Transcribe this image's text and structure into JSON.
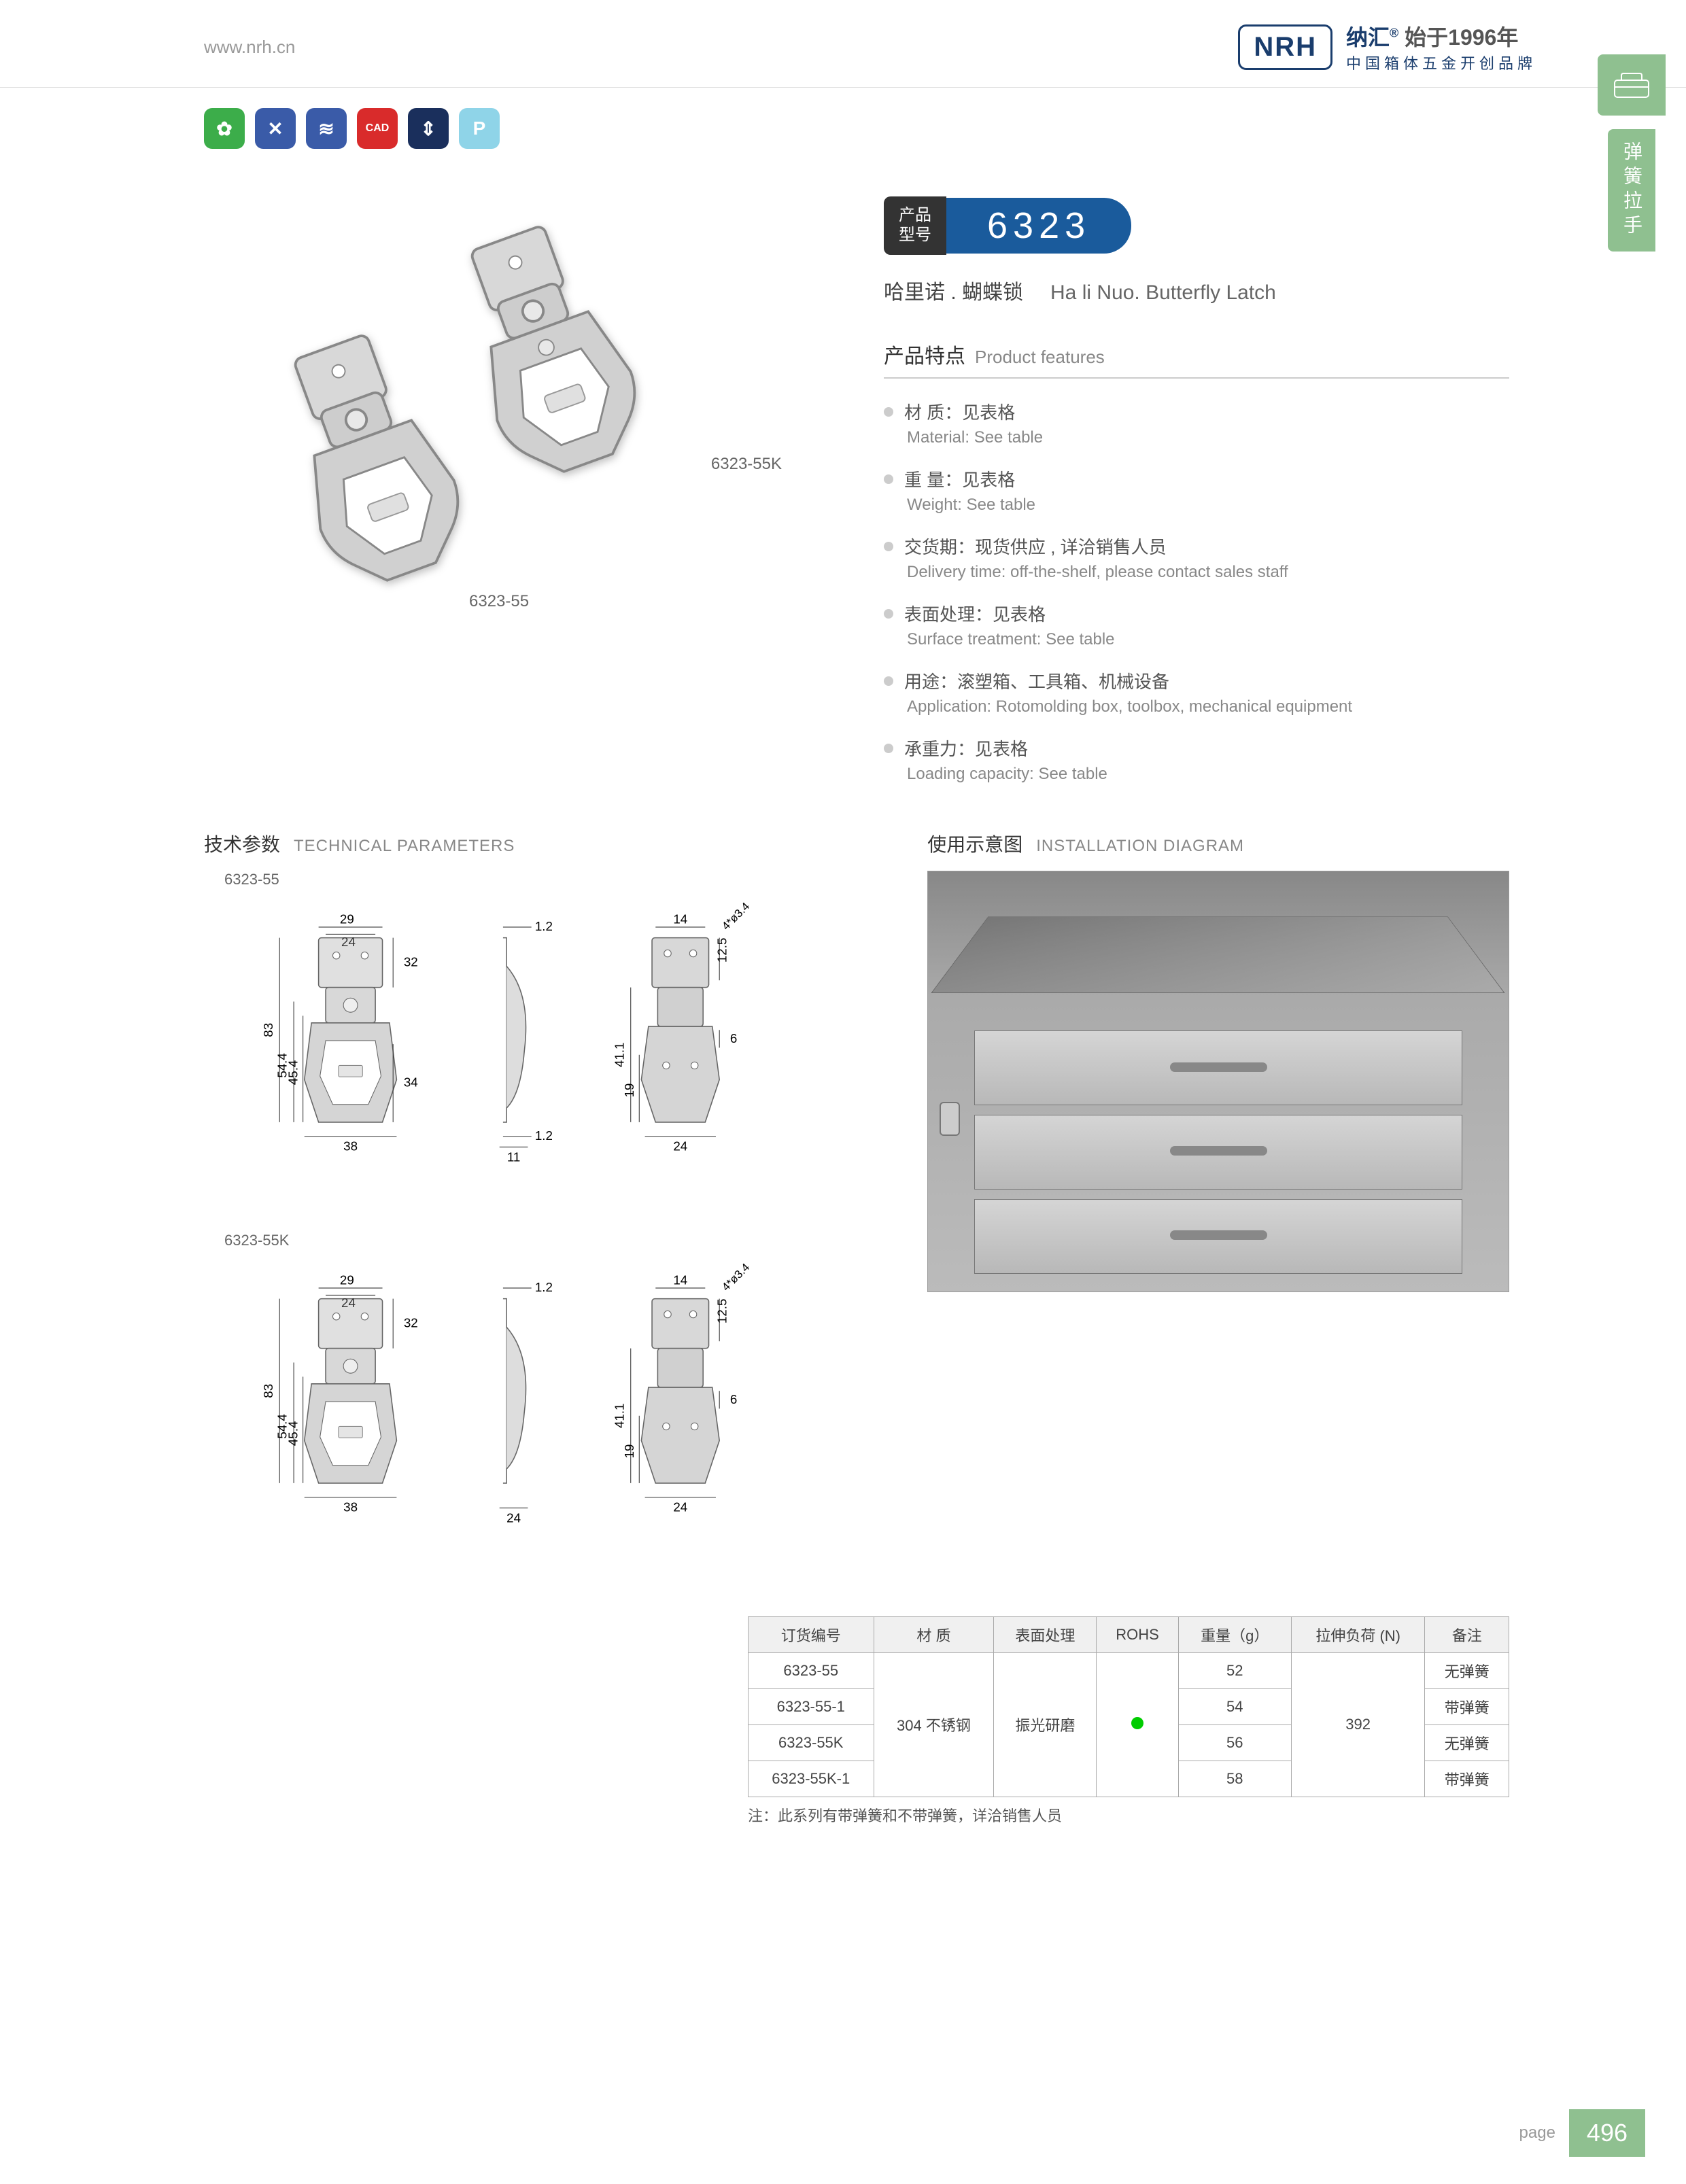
{
  "header": {
    "url": "www.nrh.cn",
    "logo": "NRH",
    "brand_cn": "纳汇",
    "brand_year": "始于1996年",
    "brand_sub": "中国箱体五金开创品牌"
  },
  "side": {
    "tab_label": "弹簧拉手"
  },
  "icons": [
    {
      "bg": "#3cad4a",
      "glyph": "✿"
    },
    {
      "bg": "#3a5ba8",
      "glyph": "✕"
    },
    {
      "bg": "#3a5ba8",
      "glyph": "≋"
    },
    {
      "bg": "#d92b2b",
      "glyph": "CAD"
    },
    {
      "bg": "#1a2f5c",
      "glyph": "⇕"
    },
    {
      "bg": "#8fd4e8",
      "glyph": "P"
    }
  ],
  "model": {
    "tag_l1": "产品",
    "tag_l2": "型号",
    "number": "6323",
    "name_cn": "哈里诺 . 蝴蝶锁",
    "name_en": "Ha li Nuo. Butterfly Latch"
  },
  "img_labels": {
    "a": "6323-55K",
    "b": "6323-55"
  },
  "features": {
    "title_cn": "产品特点",
    "title_en": "Product features",
    "items": [
      {
        "cn": "材 质：见表格",
        "en": "Material: See table"
      },
      {
        "cn": "重 量：见表格",
        "en": "Weight: See table"
      },
      {
        "cn": "交货期：现货供应 , 详洽销售人员",
        "en": "Delivery time: off-the-shelf, please contact sales staff"
      },
      {
        "cn": "表面处理：见表格",
        "en": "Surface treatment:  See table"
      },
      {
        "cn": "用途：滚塑箱、工具箱、机械设备",
        "en": "Application: Rotomolding box, toolbox, mechanical equipment"
      },
      {
        "cn": "承重力：见表格",
        "en": "Loading capacity: See table"
      }
    ]
  },
  "tech": {
    "title_cn": "技术参数",
    "title_en": "TECHNICAL PARAMETERS",
    "diagrams": [
      {
        "label": "6323-55",
        "dims": {
          "w1": "29",
          "w2": "24",
          "h1": "83",
          "h2": "54.4",
          "h3": "45.4",
          "h4": "32",
          "h5": "34",
          "w3": "38",
          "t1": "1.2",
          "t2": "1.2",
          "s1": "11",
          "v1": "41.1",
          "v2": "19",
          "v3": "12.5",
          "v4": "6",
          "vw1": "14",
          "vw2": "24",
          "hole": "4*ø3.4"
        }
      },
      {
        "label": "6323-55K",
        "dims": {
          "w1": "29",
          "w2": "24",
          "h1": "83",
          "h2": "54.4",
          "h3": "45.4",
          "h4": "32",
          "w3": "38",
          "t1": "1.2",
          "s1": "24",
          "v1": "41.1",
          "v2": "19",
          "v3": "12.5",
          "v4": "6",
          "vw1": "14",
          "vw2": "24",
          "hole": "4*ø3.4"
        }
      }
    ]
  },
  "install": {
    "title_cn": "使用示意图",
    "title_en": "INSTALLATION DIAGRAM"
  },
  "table": {
    "headers": [
      "订货编号",
      "材 质",
      "表面处理",
      "ROHS",
      "重量（g）",
      "拉伸负荷 (N)",
      "备注"
    ],
    "material": "304 不锈钢",
    "surface": "振光研磨",
    "load": "392",
    "rows": [
      {
        "code": "6323-55",
        "weight": "52",
        "note": "无弹簧"
      },
      {
        "code": "6323-55-1",
        "weight": "54",
        "note": "带弹簧"
      },
      {
        "code": "6323-55K",
        "weight": "56",
        "note": "无弹簧"
      },
      {
        "code": "6323-55K-1",
        "weight": "58",
        "note": "带弹簧"
      }
    ],
    "footnote": "注：此系列有带弹簧和不带弹簧，详洽销售人员"
  },
  "footer": {
    "page_label": "page",
    "page_num": "496"
  }
}
